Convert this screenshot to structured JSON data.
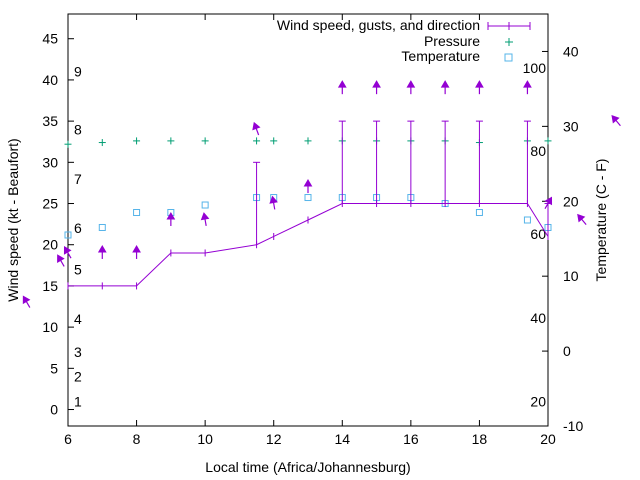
{
  "chart_data": {
    "type": "line",
    "xlabel": "Local time (Africa/Johannesburg)",
    "ylabel_left": "Wind speed (kt - Beaufort)",
    "ylabel_right": "Temperature (C - F)",
    "xlim": [
      6,
      20
    ],
    "ylim_left": [
      -2,
      48
    ],
    "ylim_right_celsius": [
      -10,
      45
    ],
    "x_ticks": [
      "6",
      "8",
      "10",
      "12",
      "14",
      "16",
      "18",
      "20"
    ],
    "y_left_ticks": [
      "0",
      "5",
      "10",
      "15",
      "20",
      "25",
      "30",
      "35",
      "40",
      "45"
    ],
    "y_right_ticks": [
      "-10",
      "0",
      "10",
      "20",
      "30",
      "40"
    ],
    "beaufort_labels": [
      {
        "text": "1",
        "kt": 1
      },
      {
        "text": "2",
        "kt": 4
      },
      {
        "text": "3",
        "kt": 7
      },
      {
        "text": "4",
        "kt": 11
      },
      {
        "text": "5",
        "kt": 17
      },
      {
        "text": "6",
        "kt": 22
      },
      {
        "text": "7",
        "kt": 28
      },
      {
        "text": "8",
        "kt": 34
      },
      {
        "text": "9",
        "kt": 41
      }
    ],
    "fahrenheit_labels": [
      {
        "text": "20",
        "c": -6.7
      },
      {
        "text": "40",
        "c": 4.4
      },
      {
        "text": "60",
        "c": 15.6
      },
      {
        "text": "80",
        "c": 26.7
      },
      {
        "text": "100",
        "c": 37.8
      }
    ],
    "legend": [
      {
        "label": "Wind speed, gusts, and direction",
        "key": "wind"
      },
      {
        "label": "Pressure",
        "key": "pressure"
      },
      {
        "label": "Temperature",
        "key": "temperature"
      }
    ],
    "series": {
      "wind_speed": {
        "x": [
          6,
          7,
          8,
          9,
          10,
          11.5,
          12,
          13,
          14,
          15,
          16,
          17,
          18,
          19.4,
          20
        ],
        "y": [
          15,
          15,
          15,
          19,
          19,
          20,
          21,
          23,
          25,
          25,
          25,
          25,
          25,
          25,
          21
        ]
      },
      "wind_gusts": [
        {
          "x": 11.5,
          "y": 30
        },
        {
          "x": 14,
          "y": 35
        },
        {
          "x": 15,
          "y": 35
        },
        {
          "x": 16,
          "y": 35
        },
        {
          "x": 17,
          "y": 35
        },
        {
          "x": 18,
          "y": 35
        },
        {
          "x": 19.4,
          "y": 35
        },
        {
          "x": 20,
          "y": 25
        }
      ],
      "pressure": {
        "x": [
          6,
          7,
          8,
          9,
          10,
          11.5,
          12,
          13,
          14,
          15,
          16,
          17,
          18,
          19.4,
          20
        ],
        "y": [
          32.2,
          32.4,
          32.6,
          32.6,
          32.6,
          32.6,
          32.6,
          32.6,
          32.6,
          32.6,
          32.6,
          32.6,
          32.4,
          32.6,
          32.6
        ]
      },
      "temperature_c": {
        "x": [
          6,
          7,
          8,
          9,
          10,
          11.5,
          12,
          13,
          14,
          15,
          16,
          17,
          18,
          19.4,
          20
        ],
        "y": [
          15.5,
          16.5,
          18.5,
          18.5,
          19.5,
          20.5,
          20.5,
          20.5,
          20.5,
          20.5,
          20.5,
          19.7,
          18.5,
          17.5,
          16.5
        ]
      },
      "wind_direction_arrows": [
        {
          "x": 6,
          "kt": 19,
          "dir_deg": 330
        },
        {
          "x": 7,
          "kt": 19,
          "dir_deg": 0
        },
        {
          "x": 8,
          "kt": 19,
          "dir_deg": 0
        },
        {
          "x": 9,
          "kt": 23,
          "dir_deg": 0
        },
        {
          "x": 10,
          "kt": 23,
          "dir_deg": 350
        },
        {
          "x": 11.5,
          "kt": 34,
          "dir_deg": 340
        },
        {
          "x": 12,
          "kt": 25,
          "dir_deg": 350
        },
        {
          "x": 13,
          "kt": 27,
          "dir_deg": 0
        },
        {
          "x": 14,
          "kt": 39,
          "dir_deg": 0
        },
        {
          "x": 15,
          "kt": 39,
          "dir_deg": 0
        },
        {
          "x": 16,
          "kt": 39,
          "dir_deg": 0
        },
        {
          "x": 17,
          "kt": 39,
          "dir_deg": 0
        },
        {
          "x": 18,
          "kt": 39,
          "dir_deg": 0
        },
        {
          "x": 19.4,
          "kt": 39,
          "dir_deg": 0
        },
        {
          "x": 20,
          "kt": 25,
          "dir_deg": 30
        },
        {
          "x": 21,
          "kt": 23,
          "dir_deg": 320
        },
        {
          "x": 22,
          "kt": 35,
          "dir_deg": 320
        },
        {
          "x": 4.8,
          "kt": 13,
          "dir_deg": 330
        },
        {
          "x": 5.8,
          "kt": 18,
          "dir_deg": 330
        }
      ]
    },
    "colors": {
      "wind": "#9400d3",
      "pressure": "#009e73",
      "temperature": "#56b4e9",
      "axis": "#000000"
    }
  }
}
